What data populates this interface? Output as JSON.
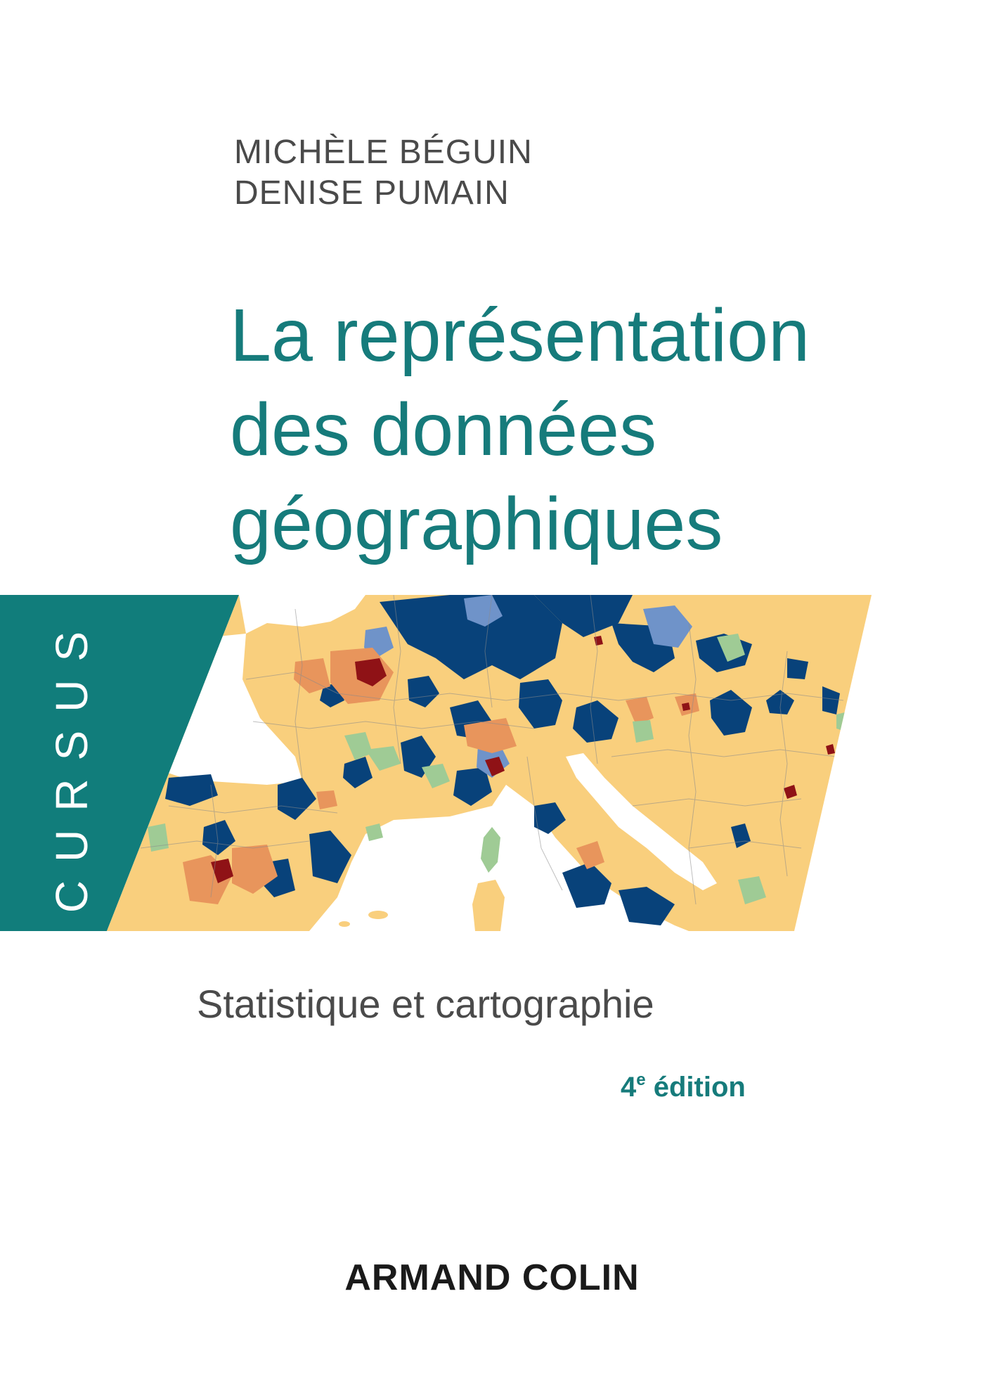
{
  "authors": [
    "MICHÈLE BÉGUIN",
    "DENISE PUMAIN"
  ],
  "title_lines": [
    "La représentation",
    "des données",
    "géographiques"
  ],
  "series_label": "CURSUS",
  "subtitle": "Statistique et cartographie",
  "edition": {
    "number": "4",
    "suffix": "e",
    "word": " édition"
  },
  "publisher": "ARMAND COLIN",
  "colors": {
    "teal": "#167b7b",
    "band": "#117d7b",
    "text_gray": "#4a4a4a",
    "map_sand": "#f9cf7d",
    "map_navy": "#08427a",
    "map_blue": "#6f93c9",
    "map_orange": "#e8955c",
    "map_green": "#9fcb95",
    "map_darkred": "#8f1216",
    "sea": "#ffffff"
  }
}
